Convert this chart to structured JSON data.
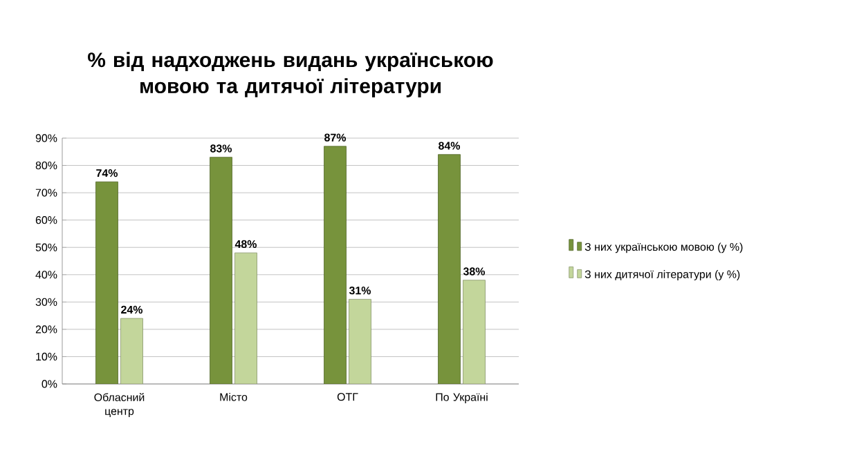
{
  "chart_data": {
    "type": "bar",
    "title": "% від надходжень видань українською мовою та дитячої літератури",
    "categories": [
      "Обласний центр",
      "Місто",
      "ОТГ",
      "По Україні"
    ],
    "series": [
      {
        "name": "З них українською мовою (у %)",
        "color": "#77933c",
        "values": [
          74,
          83,
          87,
          84
        ],
        "value_labels": [
          "74%",
          "83%",
          "87%",
          "84%"
        ]
      },
      {
        "name": "З них дитячої літератури (у %)",
        "color": "#c3d69b",
        "values": [
          24,
          48,
          31,
          38
        ],
        "value_labels": [
          "24%",
          "48%",
          "31%",
          "38%"
        ]
      }
    ],
    "ylim": [
      0,
      90
    ],
    "yticks": [
      {
        "value": 0,
        "label": "0%"
      },
      {
        "value": 10,
        "label": "10%"
      },
      {
        "value": 20,
        "label": "20%"
      },
      {
        "value": 30,
        "label": "30%"
      },
      {
        "value": 40,
        "label": "40%"
      },
      {
        "value": 50,
        "label": "50%"
      },
      {
        "value": 60,
        "label": "60%"
      },
      {
        "value": 70,
        "label": "70%"
      },
      {
        "value": 80,
        "label": "80%"
      },
      {
        "value": 90,
        "label": "90%"
      }
    ],
    "grid": "y",
    "legend": "right"
  }
}
